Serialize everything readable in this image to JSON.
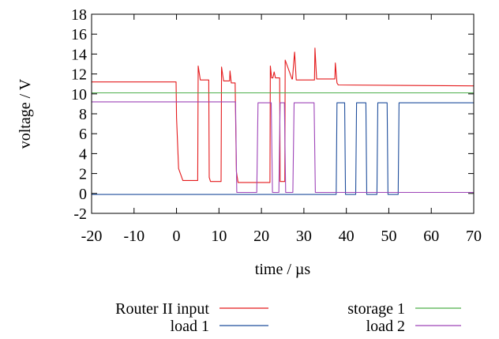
{
  "chart_data": {
    "type": "line",
    "title": "",
    "xlabel": "time /   µs",
    "ylabel": "voltage / V",
    "xlim": [
      -20,
      70
    ],
    "ylim": [
      -2,
      18
    ],
    "xticks": [
      -20,
      -10,
      0,
      10,
      20,
      30,
      40,
      50,
      60,
      70
    ],
    "yticks": [
      -2,
      0,
      2,
      4,
      6,
      8,
      10,
      12,
      14,
      16,
      18
    ],
    "grid": false,
    "legend_position": "bottom",
    "series": [
      {
        "name": "Router II input",
        "color": "#e41a1c",
        "x": [
          -20,
          -0.1,
          0,
          0.5,
          1.5,
          5,
          5.1,
          5.6,
          7.6,
          7.7,
          8,
          10.5,
          10.6,
          11.1,
          12.5,
          12.6,
          12.9,
          13.8,
          14.1,
          14.5,
          22,
          22.1,
          22.4,
          22.7,
          23,
          23.3,
          24.3,
          24.4,
          25.5,
          25.6,
          27.2,
          27.3,
          27.8,
          28.2,
          32.5,
          32.6,
          33,
          37.3,
          37.4,
          37.8,
          38.1,
          70
        ],
        "y": [
          11.2,
          11.2,
          7.6,
          2.5,
          1.3,
          1.3,
          12.8,
          11.4,
          11.4,
          1.6,
          1.2,
          1.2,
          12.7,
          11.3,
          11.3,
          12.3,
          11.1,
          11.1,
          2.2,
          1.1,
          1.1,
          12.8,
          11.6,
          11.6,
          12.2,
          11.6,
          11.6,
          1.2,
          1.2,
          13.4,
          11.5,
          11.5,
          14.2,
          11.4,
          11.4,
          14.6,
          11.5,
          11.5,
          13.1,
          11.1,
          10.9,
          10.8
        ]
      },
      {
        "name": "storage 1",
        "color": "#4daf4a",
        "x": [
          -20,
          70
        ],
        "y": [
          10.1,
          10.1
        ]
      },
      {
        "name": "load 1",
        "color": "#1f4e9c",
        "x": [
          -20,
          37.6,
          37.8,
          39.6,
          39.8,
          42.2,
          42.4,
          44.6,
          44.8,
          47.2,
          47.4,
          49.6,
          49.8,
          52.2,
          52.4,
          70
        ],
        "y": [
          -0.1,
          -0.1,
          9.1,
          9.1,
          -0.1,
          -0.1,
          9.1,
          9.1,
          -0.1,
          -0.1,
          9.1,
          9.1,
          -0.1,
          -0.1,
          9.1,
          9.1
        ]
      },
      {
        "name": "load 2",
        "color": "#9e44b8",
        "x": [
          -20,
          13.9,
          14.2,
          18.9,
          19.2,
          22.3,
          22.6,
          24.1,
          24.4,
          25.4,
          25.7,
          27.4,
          27.7,
          32.4,
          32.7,
          37.4,
          37.7,
          70
        ],
        "y": [
          9.2,
          9.2,
          0.1,
          0.1,
          9.1,
          9.1,
          0.1,
          0.1,
          9.1,
          9.1,
          0.1,
          0.1,
          9.1,
          9.1,
          0.1,
          0.1,
          0.1,
          0.1
        ]
      }
    ]
  }
}
